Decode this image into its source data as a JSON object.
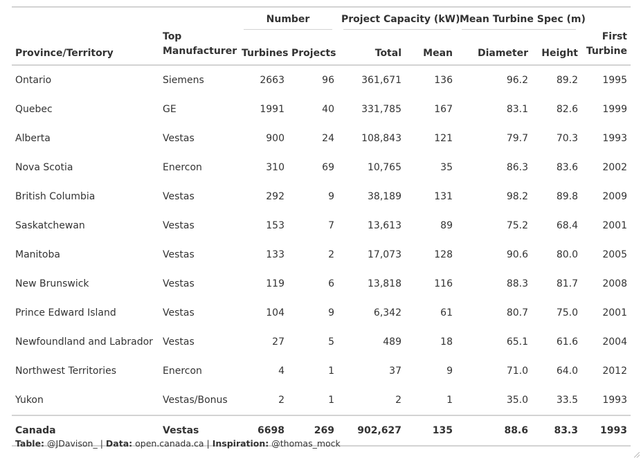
{
  "header": {
    "spanners": {
      "number": "Number",
      "capacity": "Project Capacity (kW)",
      "turbine_spec": "Mean Turbine Spec (m)"
    },
    "columns": {
      "province": "Province/Territory",
      "manufacturer_line1": "Top",
      "manufacturer_line2": "Manufacturer",
      "turbines": "Turbines",
      "projects": "Projects",
      "total": "Total",
      "mean": "Mean",
      "diameter": "Diameter",
      "height": "Height",
      "first_line1": "First",
      "first_line2": "Turbine"
    }
  },
  "rows": [
    {
      "province": "Ontario",
      "manufacturer": "Siemens",
      "turbines": "2663",
      "projects": "96",
      "total": "361,671",
      "mean": "136",
      "diameter": "96.2",
      "height": "89.2",
      "first": "1995"
    },
    {
      "province": "Quebec",
      "manufacturer": "GE",
      "turbines": "1991",
      "projects": "40",
      "total": "331,785",
      "mean": "167",
      "diameter": "83.1",
      "height": "82.6",
      "first": "1999"
    },
    {
      "province": "Alberta",
      "manufacturer": "Vestas",
      "turbines": "900",
      "projects": "24",
      "total": "108,843",
      "mean": "121",
      "diameter": "79.7",
      "height": "70.3",
      "first": "1993"
    },
    {
      "province": "Nova Scotia",
      "manufacturer": "Enercon",
      "turbines": "310",
      "projects": "69",
      "total": "10,765",
      "mean": "35",
      "diameter": "86.3",
      "height": "83.6",
      "first": "2002"
    },
    {
      "province": "British Columbia",
      "manufacturer": "Vestas",
      "turbines": "292",
      "projects": "9",
      "total": "38,189",
      "mean": "131",
      "diameter": "98.2",
      "height": "89.8",
      "first": "2009"
    },
    {
      "province": "Saskatchewan",
      "manufacturer": "Vestas",
      "turbines": "153",
      "projects": "7",
      "total": "13,613",
      "mean": "89",
      "diameter": "75.2",
      "height": "68.4",
      "first": "2001"
    },
    {
      "province": "Manitoba",
      "manufacturer": "Vestas",
      "turbines": "133",
      "projects": "2",
      "total": "17,073",
      "mean": "128",
      "diameter": "90.6",
      "height": "80.0",
      "first": "2005"
    },
    {
      "province": "New Brunswick",
      "manufacturer": "Vestas",
      "turbines": "119",
      "projects": "6",
      "total": "13,818",
      "mean": "116",
      "diameter": "88.3",
      "height": "81.7",
      "first": "2008"
    },
    {
      "province": "Prince Edward Island",
      "manufacturer": "Vestas",
      "turbines": "104",
      "projects": "9",
      "total": "6,342",
      "mean": "61",
      "diameter": "80.7",
      "height": "75.0",
      "first": "2001"
    },
    {
      "province": "Newfoundland and Labrador",
      "manufacturer": "Vestas",
      "turbines": "27",
      "projects": "5",
      "total": "489",
      "mean": "18",
      "diameter": "65.1",
      "height": "61.6",
      "first": "2004"
    },
    {
      "province": "Northwest Territories",
      "manufacturer": "Enercon",
      "turbines": "4",
      "projects": "1",
      "total": "37",
      "mean": "9",
      "diameter": "71.0",
      "height": "64.0",
      "first": "2012"
    },
    {
      "province": "Yukon",
      "manufacturer": "Vestas/Bonus",
      "turbines": "2",
      "projects": "1",
      "total": "2",
      "mean": "1",
      "diameter": "35.0",
      "height": "33.5",
      "first": "1993"
    }
  ],
  "total_row": {
    "province": "Canada",
    "manufacturer": "Vestas",
    "turbines": "6698",
    "projects": "269",
    "total": "902,627",
    "mean": "135",
    "diameter": "88.6",
    "height": "83.3",
    "first": "1993"
  },
  "caption": {
    "table_label": "Table:",
    "table_value": "@JDavison_",
    "sep1": "|",
    "data_label": "Data:",
    "data_value": "open.canada.ca",
    "sep2": "|",
    "inspiration_label": "Inspiration:",
    "inspiration_value": "@thomas_mock"
  }
}
